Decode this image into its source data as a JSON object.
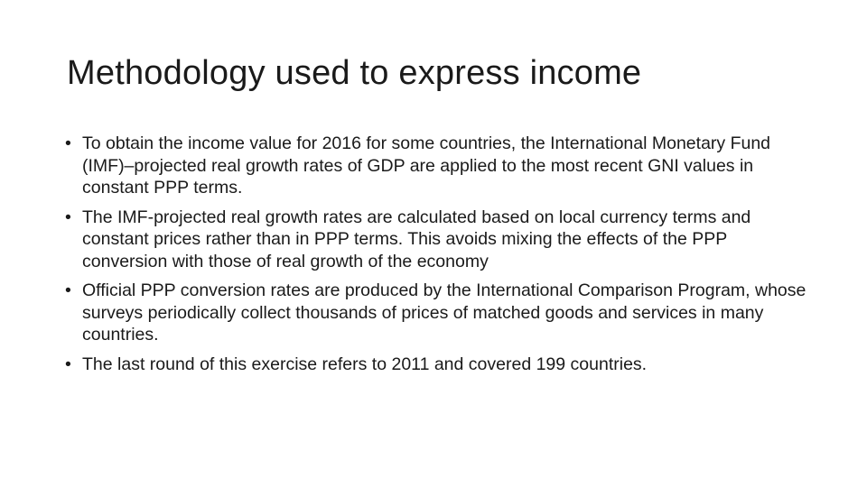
{
  "slide": {
    "title": "Methodology used to express income",
    "bullet_glyph": "•",
    "bullets": [
      {
        "text": "To obtain the income value for 2016 for some countries, the International Monetary Fund (IMF)–projected real growth rates of GDP are applied to the most recent GNI values in constant PPP terms."
      },
      {
        "text": "The IMF-projected real growth rates are calculated based on local currency terms and constant prices rather than in PPP terms. This avoids mixing the effects of the PPP conversion with those of real growth of the economy"
      },
      {
        "text": "Official PPP conversion rates are produced by the International Comparison Program, whose surveys periodically collect thousands of prices of matched goods and services in many countries."
      },
      {
        "text": "The last round of this exercise refers to 2011 and covered 199 countries."
      }
    ]
  }
}
